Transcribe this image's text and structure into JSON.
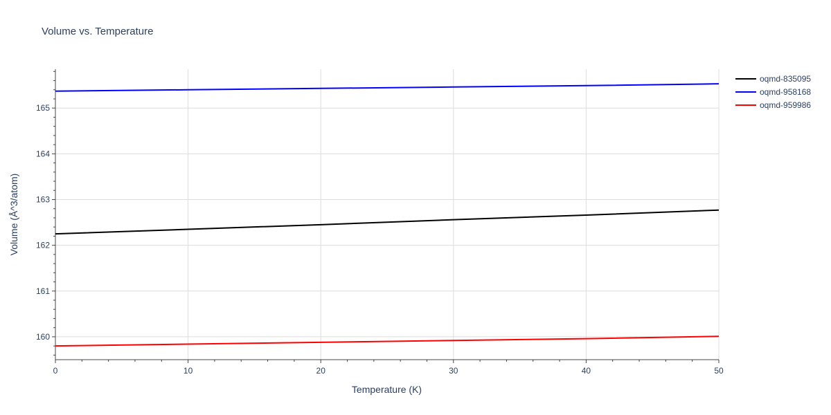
{
  "chart_data": {
    "type": "line",
    "title": "Volume vs. Temperature",
    "xlabel": "Temperature (K)",
    "ylabel": "Volume (Å^3/atom)",
    "xlim": [
      0,
      50
    ],
    "ylim": [
      159.5,
      165.85
    ],
    "x_ticks": [
      0,
      10,
      20,
      30,
      40,
      50
    ],
    "y_ticks": [
      160,
      161,
      162,
      163,
      164,
      165
    ],
    "grid": true,
    "legend_position": "top-right",
    "series": [
      {
        "name": "oqmd-835095",
        "color": "#000000",
        "x": [
          0,
          10,
          20,
          30,
          40,
          50
        ],
        "y": [
          162.25,
          162.35,
          162.45,
          162.56,
          162.66,
          162.77
        ]
      },
      {
        "name": "oqmd-958168",
        "color": "#0000ff",
        "x": [
          0,
          10,
          20,
          30,
          40,
          50
        ],
        "y": [
          165.37,
          165.4,
          165.43,
          165.46,
          165.49,
          165.53
        ]
      },
      {
        "name": "oqmd-959986",
        "color": "#ff0000",
        "x": [
          0,
          10,
          20,
          30,
          40,
          50
        ],
        "y": [
          159.8,
          159.84,
          159.88,
          159.92,
          159.96,
          160.01
        ]
      }
    ]
  }
}
